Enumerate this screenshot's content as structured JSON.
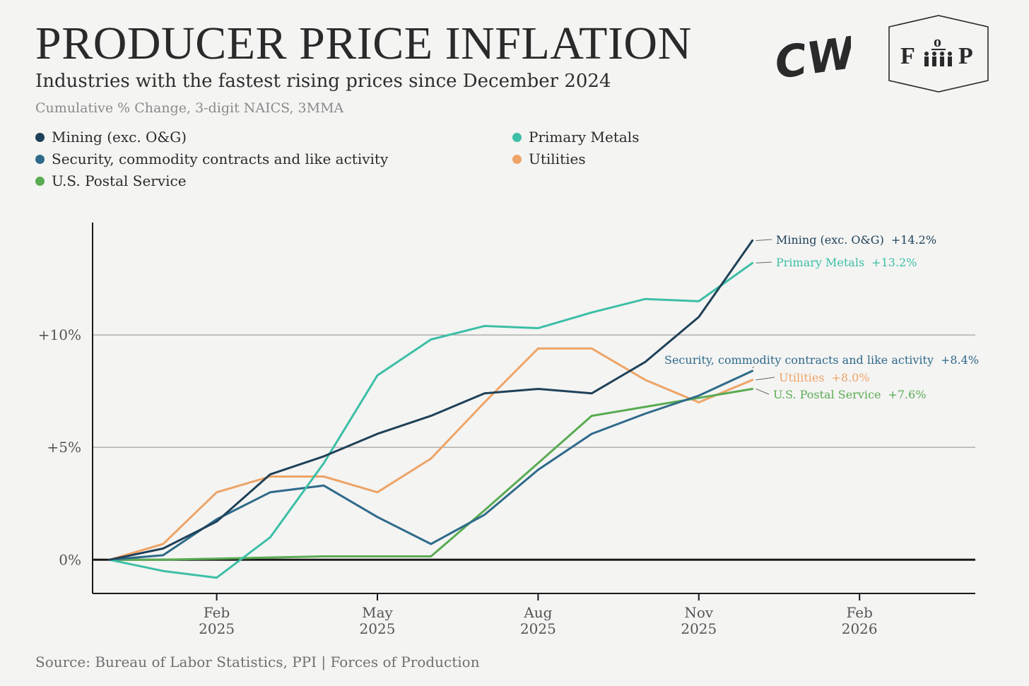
{
  "header": {
    "title": "PRODUCER PRICE INFLATION",
    "subtitle": "Industries with the fastest rising prices since December 2024",
    "note": "Cumulative % Change, 3-digit NAICS, 3MMA"
  },
  "logos": {
    "left_text": "CW",
    "right_left_letter": "F",
    "right_top_letter": "o",
    "right_right_letter": "P"
  },
  "source": "Source: Bureau of Labor Statistics, PPI | Forces of Production",
  "colors": {
    "mining": "#1f4158",
    "security": "#2e6a8a",
    "postal": "#5aab52",
    "metals": "#3cbfa6",
    "utilities": "#eea466",
    "axis": "#1a1a1a",
    "grid": "#8c8c8c"
  },
  "chart_data": {
    "type": "line",
    "title": "PRODUCER PRICE INFLATION",
    "ylabel": "",
    "xlabel": "",
    "ylim": [
      -1.5,
      15
    ],
    "yticks": [
      {
        "value": 0,
        "label": "0%"
      },
      {
        "value": 5,
        "label": "+5%"
      },
      {
        "value": 10,
        "label": "+10%"
      }
    ],
    "xticks": [
      {
        "date": "2025-02",
        "label_month": "Feb",
        "label_year": "2025"
      },
      {
        "date": "2025-05",
        "label_month": "May",
        "label_year": "2025"
      },
      {
        "date": "2025-08",
        "label_month": "Aug",
        "label_year": "2025"
      },
      {
        "date": "2025-11",
        "label_month": "Nov",
        "label_year": "2025"
      },
      {
        "date": "2026-02",
        "label_month": "Feb",
        "label_year": "2026"
      }
    ],
    "x": [
      "2024-12",
      "2025-01",
      "2025-02",
      "2025-03",
      "2025-04",
      "2025-05",
      "2025-06",
      "2025-07",
      "2025-08",
      "2025-09",
      "2025-10",
      "2025-11",
      "2025-12"
    ],
    "grid": true,
    "legend_position": "top-left",
    "series": [
      {
        "key": "mining",
        "name": "Mining (exc. O&G)",
        "end_label": "+14.2%",
        "values": [
          0,
          0.5,
          1.7,
          3.8,
          4.6,
          5.6,
          6.4,
          7.4,
          7.6,
          7.4,
          8.8,
          10.8,
          14.2
        ]
      },
      {
        "key": "security",
        "name": "Security, commodity contracts and like activity",
        "end_label": "+8.4%",
        "values": [
          0,
          0.2,
          1.8,
          3.0,
          3.3,
          1.9,
          0.7,
          2.0,
          4.0,
          5.6,
          6.5,
          7.3,
          8.4
        ]
      },
      {
        "key": "postal",
        "name": "U.S. Postal Service",
        "end_label": "+7.6%",
        "values": [
          0,
          0.0,
          0.05,
          0.1,
          0.15,
          0.15,
          0.15,
          2.2,
          4.3,
          6.4,
          6.8,
          7.2,
          7.6
        ]
      },
      {
        "key": "metals",
        "name": "Primary Metals",
        "end_label": "+13.2%",
        "values": [
          0,
          -0.5,
          -0.8,
          1.0,
          4.3,
          8.2,
          9.8,
          10.4,
          10.3,
          11.0,
          11.6,
          11.5,
          13.2
        ]
      },
      {
        "key": "utilities",
        "name": "Utilities",
        "end_label": "+8.0%",
        "values": [
          0,
          0.7,
          3.0,
          3.7,
          3.7,
          3.0,
          4.5,
          7.0,
          9.4,
          9.4,
          8.0,
          7.0,
          8.0
        ]
      }
    ]
  }
}
